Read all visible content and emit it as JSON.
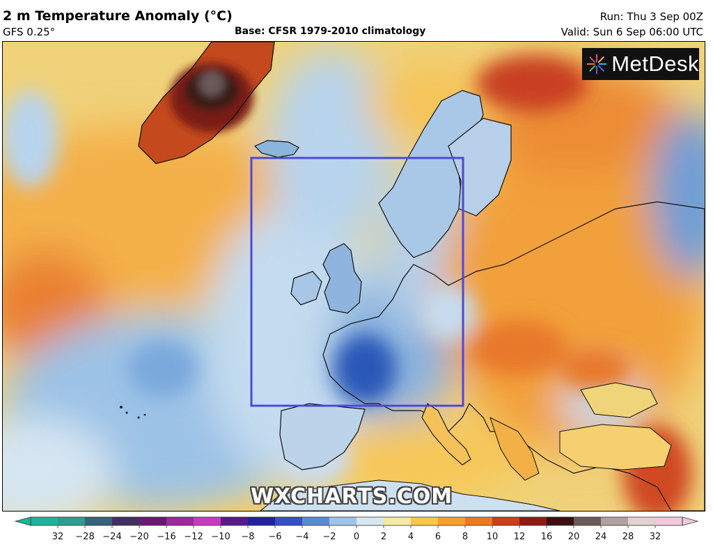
{
  "header": {
    "title": "2 m Temperature Anomaly (°C)",
    "model": "GFS 0.25°",
    "base": "Base: CFSR 1979-2010 climatology",
    "run": "Run: Thu 3 Sep 00Z",
    "valid": "Valid: Sun 6 Sep 06:00 UTC"
  },
  "logo": {
    "text": "MetDesk",
    "icon": "star-burst-icon"
  },
  "watermark": {
    "text": "WXCHARTS.COM"
  },
  "colorbar": {
    "unit": "°C",
    "ticks": [
      "32",
      "−28",
      "−24",
      "−20",
      "−16",
      "−12",
      "−10",
      "−8",
      "−6",
      "−4",
      "−2",
      "0",
      "2",
      "4",
      "6",
      "8",
      "10",
      "12",
      "16",
      "20",
      "24",
      "28",
      "32"
    ],
    "colors": [
      "#1fb39a",
      "#2f9c8e",
      "#35637a",
      "#403060",
      "#6a1a6e",
      "#9a2a9a",
      "#c43dc0",
      "#5a1a8a",
      "#22229a",
      "#3650c0",
      "#5a8ad0",
      "#9ec4e6",
      "#d8e6f0",
      "#f2eaa6",
      "#f6c84a",
      "#f2a030",
      "#e87a26",
      "#c8401c",
      "#8a1c14",
      "#3a1010",
      "#6a5a5a",
      "#b0a0a0",
      "#e4d0d0",
      "#f0c8d8"
    ]
  },
  "selection_box": {
    "color": "#4a4ad8"
  },
  "palette": {
    "sea_warm": "#f5c860",
    "warm": "#f2a33a",
    "hot": "#e4702a",
    "very_hot": "#b83418",
    "cold_light": "#c6dcee",
    "cold": "#8fb8e0",
    "cold_deep": "#2a58b8"
  }
}
